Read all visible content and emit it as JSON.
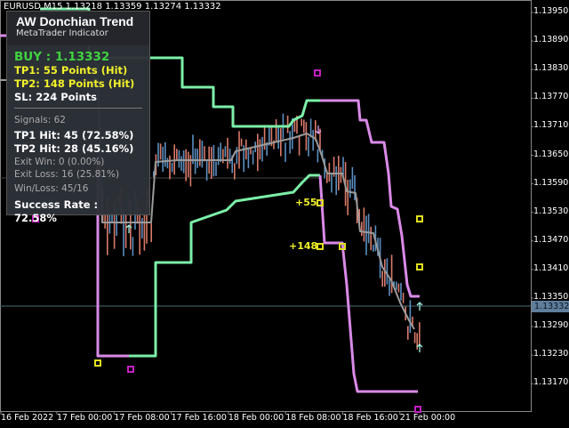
{
  "symbol_bar": "EURUSD,M15  1.13218 1.13359 1.13274 1.13332",
  "price_axis": [
    "1.13950",
    "1.13890",
    "1.13830",
    "1.13770",
    "1.13710",
    "1.13650",
    "1.13590",
    "1.13530",
    "1.13470",
    "1.13410",
    "1.13350",
    "1.13290",
    "1.13230",
    "1.13170"
  ],
  "current_price": "1.13332",
  "time_axis": [
    "16 Feb 2022",
    "17 Feb 00:00",
    "17 Feb 08:00",
    "17 Feb 16:00",
    "18 Feb 00:00",
    "18 Feb 08:00",
    "18 Feb 16:00",
    "21 Feb 00:00"
  ],
  "panel": {
    "title": "AW Donchian Trend",
    "subtitle": "MetaTrader Indicator",
    "signal": "BUY : 1.13332",
    "tp1": "TP1: 55 Points (Hit)",
    "tp2": "TP2: 148 Points (Hit)",
    "sl": "SL: 224 Points",
    "signals": "Signals: 62",
    "tp1_hit": "TP1 Hit: 45 (72.58%)",
    "tp2_hit": "TP2 Hit: 28 (45.16%)",
    "exit_win": "Exit Win: 0 (0.00%)",
    "exit_loss": "Exit Loss: 16 (25.81%)",
    "win_loss": "Win/Loss: 45/16",
    "success_rate": "Success Rate : 72.58%"
  },
  "labels": {
    "tp1": "+55",
    "tp2": "+148"
  },
  "colors": {
    "bull_band": "#7cf0a8",
    "bear_band": "#d98ae8",
    "mid_line": "#9a9a9a",
    "bull_candle": "#5b8fc0",
    "bear_candle": "#d97a6a",
    "marker_yellow": "#e0e020",
    "marker_magenta": "#c020c0",
    "buy_text": "#3fd33f",
    "tp_text": "#f1f12a"
  }
}
